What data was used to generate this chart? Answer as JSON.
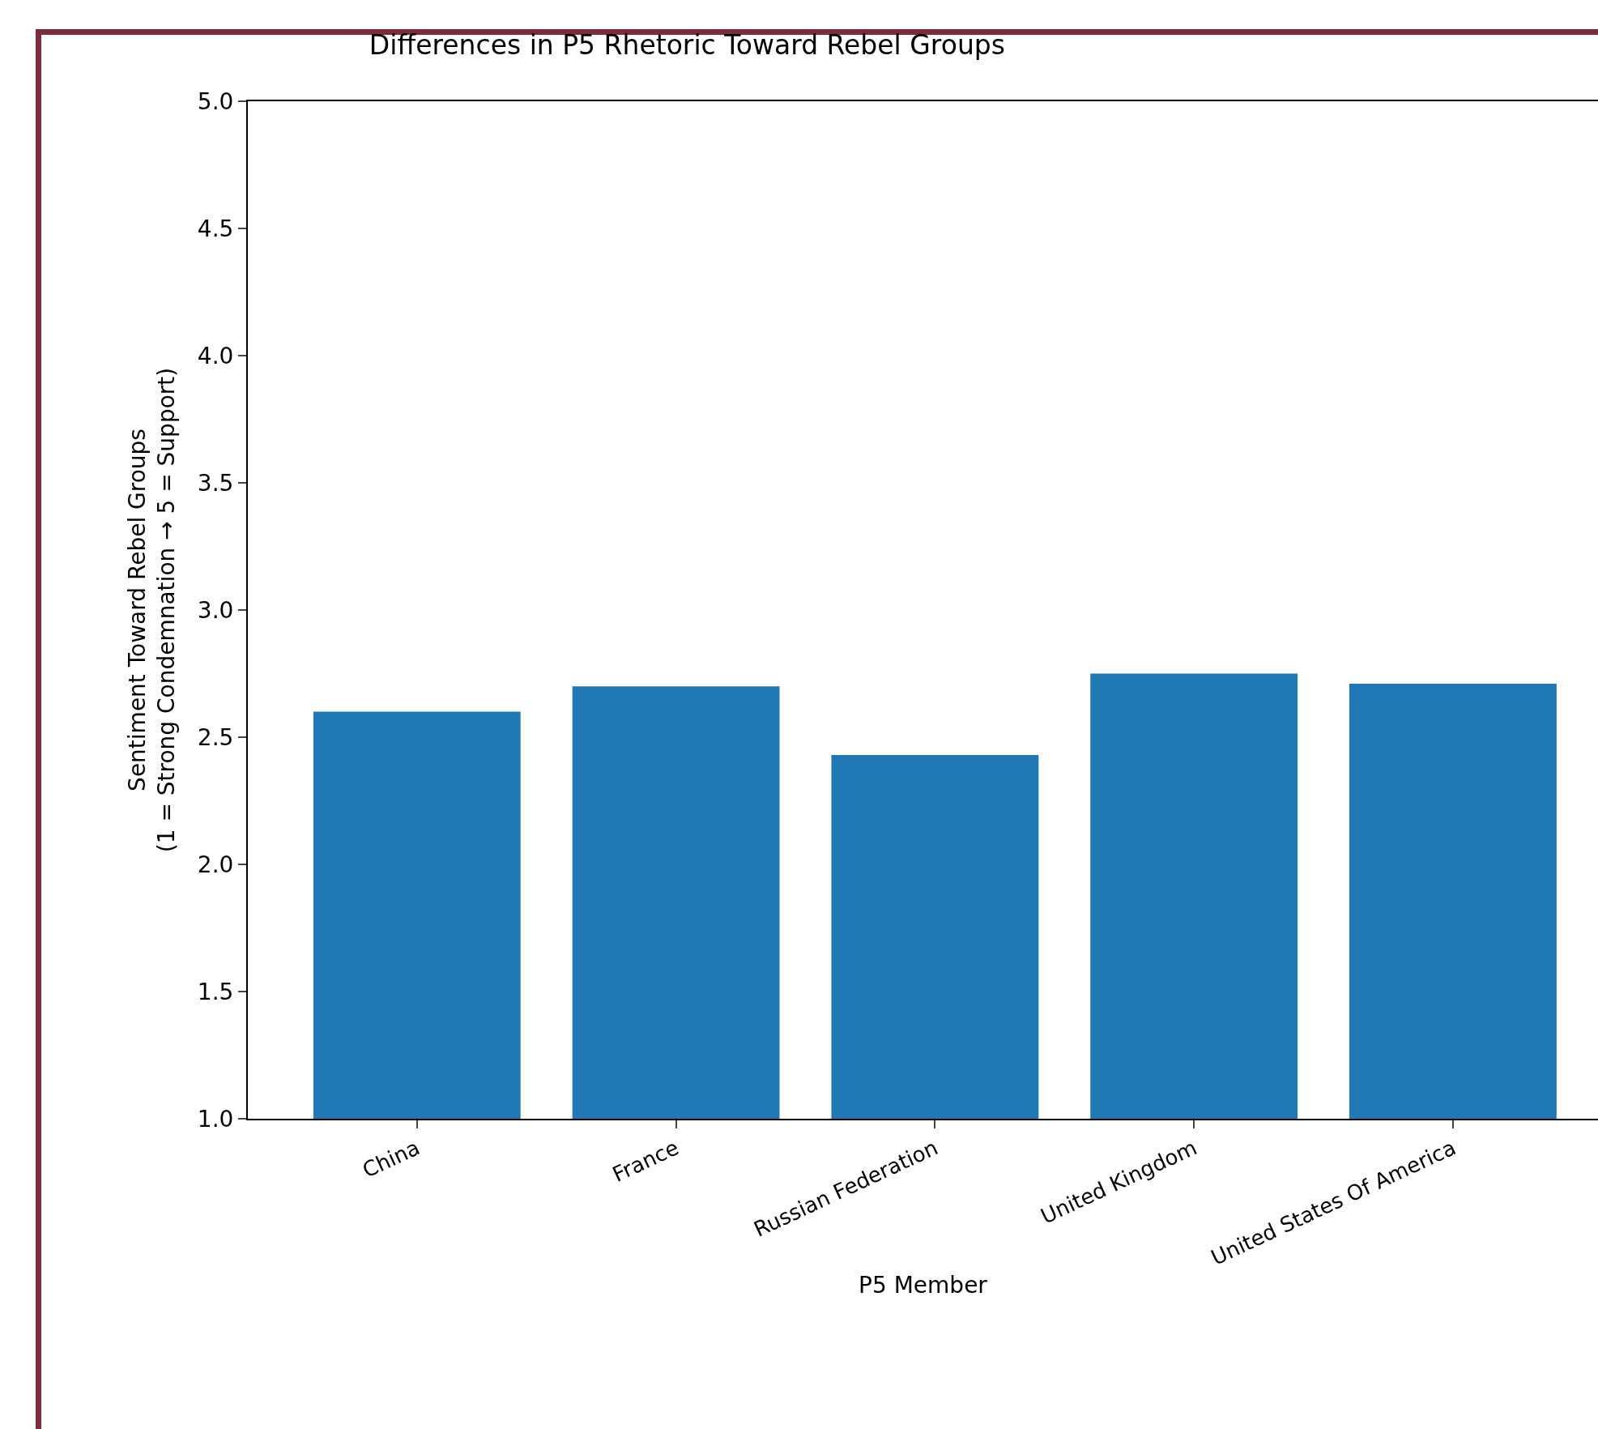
{
  "chart_data": {
    "type": "bar",
    "title": "Differences in P5 Rhetoric Toward Rebel Groups",
    "xlabel": "P5 Member",
    "ylabel": "Sentiment Toward Rebel Groups\n(1 = Strong Condemnation → 5 = Support)",
    "categories": [
      "China",
      "France",
      "Russian Federation",
      "United Kingdom",
      "United States Of America"
    ],
    "values": [
      2.6,
      2.7,
      2.43,
      2.75,
      2.71
    ],
    "color": "#1f77b4",
    "ylim": [
      1.0,
      5.0
    ],
    "yticks": [
      {
        "value": 1.0,
        "label": "1.0"
      },
      {
        "value": 1.5,
        "label": "1.5"
      },
      {
        "value": 2.0,
        "label": "2.0"
      },
      {
        "value": 2.5,
        "label": "2.5"
      },
      {
        "value": 3.0,
        "label": "3.0"
      },
      {
        "value": 3.5,
        "label": "3.5"
      },
      {
        "value": 4.0,
        "label": "4.0"
      },
      {
        "value": 4.5,
        "label": "4.5"
      },
      {
        "value": 5.0,
        "label": "5.0"
      }
    ],
    "grid": false,
    "legend": false
  }
}
